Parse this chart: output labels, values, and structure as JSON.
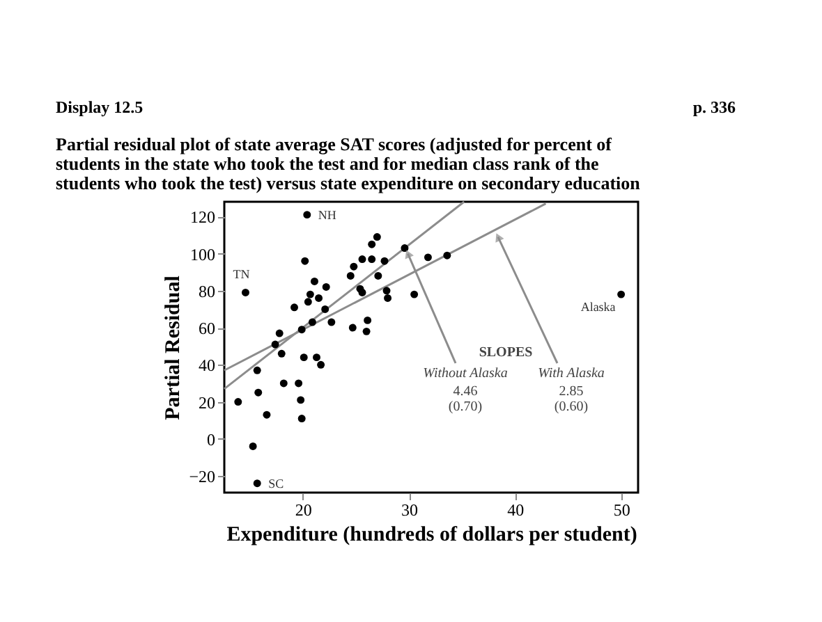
{
  "chart_data": {
    "type": "scatter",
    "title": "Partial residual plot of state average SAT scores (adjusted for percent of\nstudents in the state who took the test and for median class rank of the\nstudents who took the test) versus state expenditure on secondary education",
    "xlabel": "Expenditure (hundreds of dollars per student)",
    "ylabel": "Partial Residual",
    "xlim": [
      12.6,
      51.6
    ],
    "ylim": [
      -29,
      128
    ],
    "xticks": [
      20,
      30,
      40,
      50
    ],
    "yticks": [
      -20,
      0,
      20,
      40,
      60,
      80,
      100,
      120
    ],
    "grid": false,
    "series": [
      {
        "color": "#000000",
        "marker": "circle",
        "x": [
          20.4,
          14.6,
          15.7,
          20.2,
          13.9,
          15.7,
          15.8,
          15.3,
          16.6,
          17.4,
          17.8,
          18.0,
          18.2,
          19.2,
          19.6,
          19.8,
          19.9,
          19.9,
          20.1,
          20.5,
          20.7,
          20.9,
          21.1,
          21.3,
          21.5,
          21.7,
          22.2,
          22.1,
          22.7,
          24.5,
          24.8,
          24.7,
          25.6,
          25.4,
          25.6,
          26.1,
          26.0,
          26.5,
          26.5,
          27.0,
          27.1,
          27.7,
          27.9,
          28.0,
          29.6,
          30.5,
          31.8,
          33.6,
          50.0
        ],
        "values": [
          121,
          79,
          -24,
          96,
          20,
          37,
          25,
          -4,
          13,
          51,
          57,
          46,
          30,
          71,
          30,
          21,
          11,
          59,
          44,
          74,
          78,
          63,
          85,
          44,
          76,
          40,
          82,
          70,
          63,
          88,
          93,
          60,
          97,
          81,
          79,
          64,
          58,
          97,
          105,
          109,
          88,
          96,
          80,
          76,
          103,
          78,
          98,
          99,
          78
        ]
      },
      {
        "type": "line",
        "color": "#8c8c8c",
        "marker": "none",
        "line_style": "solid",
        "x": [
          12.6,
          35.2
        ],
        "values": [
          27,
          128
        ]
      },
      {
        "type": "line",
        "color": "#8c8c8c",
        "marker": "none",
        "line_style": "solid",
        "x": [
          12.6,
          42.9
        ],
        "values": [
          37,
          127
        ]
      }
    ],
    "annotations": [
      {
        "text": "NH",
        "x": 20.4,
        "y": 121
      },
      {
        "text": "TN",
        "x": 14.6,
        "y": 79
      },
      {
        "text": "SC",
        "x": 15.7,
        "y": -24
      },
      {
        "text": "Alaska",
        "x": 50.0,
        "y": 78
      },
      "SLOPES",
      {
        "text": "Without Alaska",
        "x": 29.9,
        "y": 100
      },
      "4.46\n(0.70)",
      {
        "text": "With Alaska",
        "x": 38.4,
        "y": 109
      },
      "2.85\n(0.60)",
      "Display 12.5",
      "p. 336"
    ]
  }
}
